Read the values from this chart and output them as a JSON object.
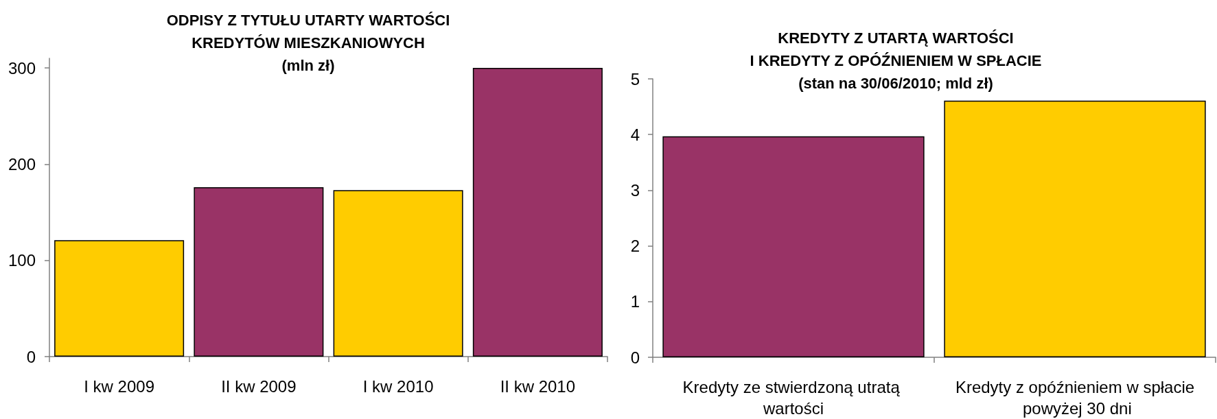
{
  "chart_data": [
    {
      "type": "bar",
      "title": "ODPISY Z TYTUŁU UTARTY WARTOŚCI\nKREDYTÓW MIESZKANIOWYCH",
      "subtitle": "(mln zł)",
      "categories": [
        "I kw 2009",
        "II kw 2009",
        "I kw 2010",
        "II kw 2010"
      ],
      "values": [
        121,
        176,
        173,
        300
      ],
      "colors": [
        "#ffcc00",
        "#993366",
        "#ffcc00",
        "#993366"
      ],
      "ylim": [
        0,
        310
      ],
      "yticks": [
        0,
        100,
        200,
        300
      ]
    },
    {
      "type": "bar",
      "title": "KREDYTY Z UTARTĄ WARTOŚCI\nI KREDYTY Z OPÓŹNIENIEM W SPŁACIE",
      "subtitle": "(stan na 30/06/2010; mld zł)",
      "categories": [
        "Kredyty ze stwierdzoną utratą wartości",
        "Kredyty z opóźnieniem w spłacie powyżej 30 dni"
      ],
      "values": [
        3.97,
        4.61
      ],
      "colors": [
        "#993366",
        "#ffcc00"
      ],
      "ylim": [
        0,
        5
      ],
      "yticks": [
        0,
        1,
        2,
        3,
        4,
        5
      ]
    }
  ]
}
